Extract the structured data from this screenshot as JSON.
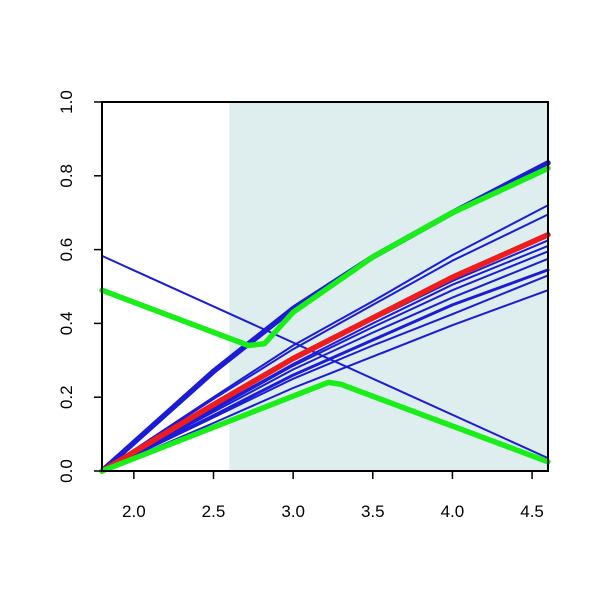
{
  "chart_data": {
    "type": "line",
    "title": "",
    "xlabel": "",
    "ylabel": "",
    "xlim": [
      1.8,
      4.6
    ],
    "ylim": [
      0.0,
      1.0
    ],
    "x_ticks": [
      2.0,
      2.5,
      3.0,
      3.5,
      4.0,
      4.5
    ],
    "x_tick_labels": [
      "2.0",
      "2.5",
      "3.0",
      "3.5",
      "4.0",
      "4.5"
    ],
    "y_ticks": [
      0.0,
      0.2,
      0.4,
      0.6,
      0.8,
      1.0
    ],
    "y_tick_labels": [
      "0.0",
      "0.2",
      "0.4",
      "0.6",
      "0.8",
      "1.0"
    ],
    "grid": false,
    "legend": "none",
    "shaded_region": {
      "x_from": 2.6,
      "x_to": 4.6,
      "color": "#deeded"
    },
    "colors": {
      "blue": "#1c1cd6",
      "red": "#ee1c1c",
      "green": "#19ee19"
    },
    "series": [
      {
        "color": "blue",
        "width": "thin",
        "x": [
          1.8,
          4.6
        ],
        "y": [
          0.583,
          0.035
        ]
      },
      {
        "color": "blue",
        "width": "thick",
        "x": [
          1.8,
          2.5,
          3.0,
          3.5,
          4.0,
          4.6
        ],
        "y": [
          0.0,
          0.27,
          0.44,
          0.58,
          0.7,
          0.835
        ]
      },
      {
        "color": "blue",
        "width": "thin",
        "x": [
          1.8,
          2.5,
          3.0,
          3.5,
          4.0,
          4.6
        ],
        "y": [
          0.0,
          0.2,
          0.34,
          0.46,
          0.585,
          0.72
        ]
      },
      {
        "color": "blue",
        "width": "thin",
        "x": [
          1.8,
          2.5,
          3.0,
          3.5,
          4.0,
          4.6
        ],
        "y": [
          0.0,
          0.195,
          0.33,
          0.45,
          0.57,
          0.695
        ]
      },
      {
        "color": "blue",
        "width": "thin",
        "x": [
          1.8,
          2.5,
          3.0,
          3.5,
          4.0,
          4.6
        ],
        "y": [
          0.0,
          0.175,
          0.3,
          0.41,
          0.515,
          0.625
        ]
      },
      {
        "color": "blue",
        "width": "thin",
        "x": [
          1.8,
          2.5,
          3.0,
          3.5,
          4.0,
          4.6
        ],
        "y": [
          0.0,
          0.17,
          0.29,
          0.4,
          0.505,
          0.61
        ]
      },
      {
        "color": "blue",
        "width": "thin",
        "x": [
          1.8,
          2.5,
          3.0,
          3.5,
          4.0,
          4.6
        ],
        "y": [
          0.0,
          0.165,
          0.285,
          0.39,
          0.49,
          0.595
        ]
      },
      {
        "color": "blue",
        "width": "thin",
        "x": [
          1.8,
          2.5,
          3.0,
          3.5,
          4.0,
          4.6
        ],
        "y": [
          0.0,
          0.16,
          0.275,
          0.375,
          0.47,
          0.575
        ]
      },
      {
        "color": "blue",
        "width": "medium",
        "x": [
          1.8,
          2.5,
          3.0,
          3.5,
          4.0,
          4.6
        ],
        "y": [
          0.0,
          0.15,
          0.26,
          0.355,
          0.45,
          0.545
        ]
      },
      {
        "color": "blue",
        "width": "thin",
        "x": [
          1.8,
          2.5,
          3.0,
          3.5,
          4.0,
          4.6
        ],
        "y": [
          0.0,
          0.145,
          0.25,
          0.34,
          0.425,
          0.53
        ]
      },
      {
        "color": "blue",
        "width": "thin",
        "x": [
          1.8,
          2.5,
          3.0,
          3.5,
          4.0,
          4.6
        ],
        "y": [
          0.0,
          0.13,
          0.225,
          0.31,
          0.395,
          0.49
        ]
      },
      {
        "color": "red",
        "width": "thick",
        "x": [
          1.8,
          2.5,
          3.0,
          3.5,
          4.0,
          4.6
        ],
        "y": [
          0.0,
          0.18,
          0.305,
          0.415,
          0.525,
          0.64
        ]
      },
      {
        "color": "green",
        "width": "thick",
        "x": [
          1.8,
          2.72,
          2.82,
          3.0,
          3.5,
          4.0,
          4.6
        ],
        "y": [
          0.49,
          0.34,
          0.345,
          0.43,
          0.58,
          0.7,
          0.82
        ]
      },
      {
        "color": "green",
        "width": "thick",
        "x": [
          1.8,
          3.22,
          3.3,
          4.6
        ],
        "y": [
          0.0,
          0.24,
          0.235,
          0.025
        ]
      }
    ]
  }
}
